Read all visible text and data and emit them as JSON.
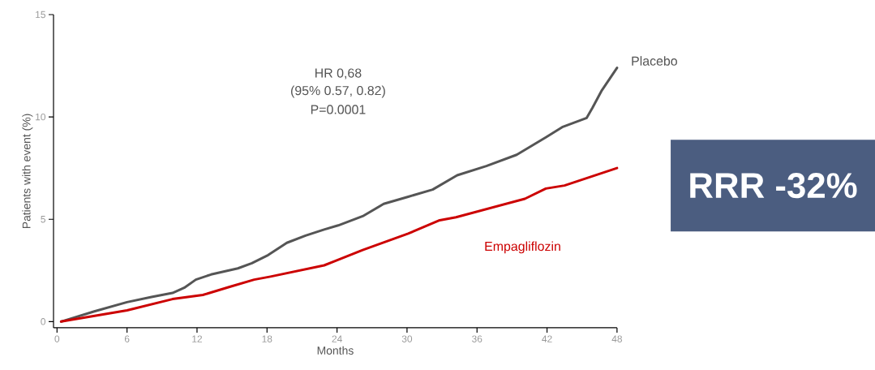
{
  "chart_data": {
    "type": "line",
    "xlabel": "Months",
    "ylabel": "Patients with event (%)",
    "xlim": [
      -0.3,
      48
    ],
    "ylim": [
      -0.3,
      15
    ],
    "xticks": [
      0,
      6,
      12,
      18,
      24,
      30,
      36,
      42,
      48
    ],
    "yticks": [
      0,
      5,
      10,
      15
    ],
    "marker": "none",
    "series": [
      {
        "name": "Placebo",
        "color": "#555555",
        "x": [
          0.35,
          3.2,
          6.0,
          8.1,
          9.9,
          10.9,
          11.9,
          13.2,
          15.5,
          16.7,
          18.1,
          19.7,
          21.3,
          22.9,
          24.1,
          26.2,
          28.0,
          30.1,
          32.2,
          34.3,
          36.8,
          39.4,
          41.9,
          43.3,
          45.4,
          45.9,
          46.7,
          48.0
        ],
        "values": [
          0,
          0.5,
          0.95,
          1.2,
          1.4,
          1.65,
          2.05,
          2.3,
          2.6,
          2.85,
          3.25,
          3.85,
          4.2,
          4.5,
          4.7,
          5.15,
          5.75,
          6.1,
          6.45,
          7.15,
          7.6,
          8.15,
          9.0,
          9.5,
          9.95,
          10.45,
          11.3,
          12.4
        ]
      },
      {
        "name": "Empagliflozin",
        "color": "#cc0000",
        "x": [
          0.35,
          6.0,
          9.9,
          12.5,
          14.8,
          16.9,
          18.3,
          22.9,
          23.8,
          26.2,
          30.1,
          32.8,
          34.2,
          40.1,
          41.9,
          43.5,
          48.0
        ],
        "values": [
          0,
          0.55,
          1.1,
          1.3,
          1.7,
          2.05,
          2.2,
          2.75,
          2.95,
          3.5,
          4.3,
          4.95,
          5.1,
          6.0,
          6.5,
          6.65,
          7.5
        ]
      }
    ],
    "annotations": [
      "HR 0,68",
      "(95% 0.57, 0.82)",
      "P=0.0001",
      "RRR -32%"
    ]
  }
}
